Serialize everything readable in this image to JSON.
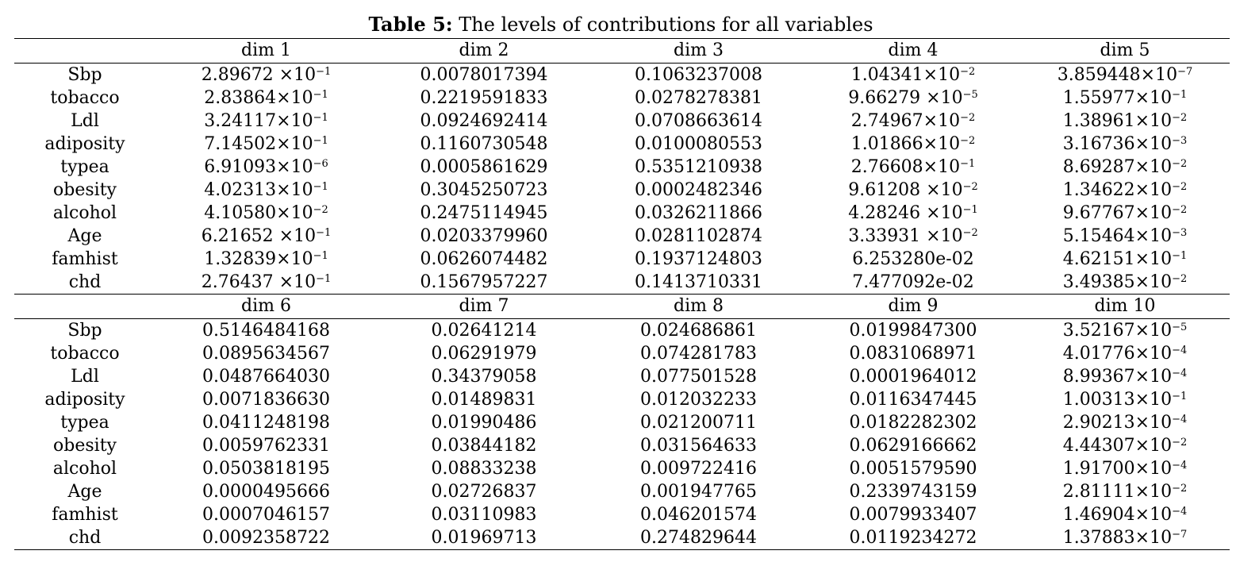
{
  "caption": {
    "label": "Table 5:",
    "text": " The levels of contributions for all variables"
  },
  "panels": [
    {
      "header": [
        "dim 1",
        "dim 2",
        "dim 3",
        "dim 4",
        "dim 5"
      ],
      "rows": [
        {
          "name": "Sbp",
          "values": [
            "2.89672 ×10^-1",
            "0.0078017394",
            "0.1063237008",
            "1.04341×10^-2",
            "3.859448×10^-7"
          ]
        },
        {
          "name": "tobacco",
          "values": [
            "2.83864×10^-1",
            "0.2219591833",
            "0.0278278381",
            "9.66279 ×10^-5",
            "1.55977×10^-1"
          ]
        },
        {
          "name": "Ldl",
          "values": [
            "3.24117×10^-1",
            "0.0924692414",
            "0.0708663614",
            "2.74967×10^-2",
            "1.38961×10^-2"
          ]
        },
        {
          "name": "adiposity",
          "values": [
            "7.14502×10^-1",
            "0.1160730548",
            "0.0100080553",
            "1.01866×10^-2",
            "3.16736×10^-3"
          ]
        },
        {
          "name": "typea",
          "values": [
            "6.91093×10^-6",
            "0.0005861629",
            "0.5351210938",
            "2.76608×10^-1",
            "8.69287×10^-2"
          ]
        },
        {
          "name": "obesity",
          "values": [
            "4.02313×10^-1",
            "0.3045250723",
            "0.0002482346",
            "9.61208 ×10^-2",
            "1.34622×10^-2"
          ]
        },
        {
          "name": "alcohol",
          "values": [
            "4.10580×10^-2",
            "0.2475114945",
            "0.0326211866",
            "4.28246 ×10^-1",
            "9.67767×10^-2"
          ]
        },
        {
          "name": "Age",
          "values": [
            "6.21652 ×10^-1",
            "0.0203379960",
            "0.0281102874",
            "3.33931 ×10^-2",
            "5.15464×10^-3"
          ]
        },
        {
          "name": "famhist",
          "values": [
            "1.32839×10^-1",
            "0.0626074482",
            "0.1937124803",
            "6.253280e-02",
            "4.62151×10^-1"
          ]
        },
        {
          "name": "chd",
          "values": [
            "2.76437 ×10^-1",
            "0.1567957227",
            "0.1413710331",
            "7.477092e-02",
            "3.49385×10^-2"
          ]
        }
      ]
    },
    {
      "header": [
        "dim 6",
        "dim 7",
        "dim 8",
        "dim 9",
        "dim 10"
      ],
      "rows": [
        {
          "name": "Sbp",
          "values": [
            "0.5146484168",
            "0.02641214",
            "0.024686861",
            "0.0199847300",
            "3.52167×10^-5"
          ]
        },
        {
          "name": "tobacco",
          "values": [
            "0.0895634567",
            "0.06291979",
            "0.074281783",
            "0.0831068971",
            "4.01776×10^-4"
          ]
        },
        {
          "name": "Ldl",
          "values": [
            "0.0487664030",
            "0.34379058",
            "0.077501528",
            "0.0001964012",
            "8.99367×10^-4"
          ]
        },
        {
          "name": "adiposity",
          "values": [
            "0.0071836630",
            "0.01489831",
            "0.012032233",
            "0.0116347445",
            "1.00313×10^-1"
          ]
        },
        {
          "name": "typea",
          "values": [
            "0.0411248198",
            "0.01990486",
            "0.021200711",
            "0.0182282302",
            "2.90213×10^-4"
          ]
        },
        {
          "name": "obesity",
          "values": [
            "0.0059762331",
            "0.03844182",
            "0.031564633",
            "0.0629166662",
            "4.44307×10^-2"
          ]
        },
        {
          "name": "alcohol",
          "values": [
            "0.0503818195",
            "0.08833238",
            "0.009722416",
            "0.0051579590",
            "1.91700×10^-4"
          ]
        },
        {
          "name": "Age",
          "values": [
            "0.0000495666",
            "0.02726837",
            "0.001947765",
            "0.2339743159",
            "2.81111×10^-2"
          ]
        },
        {
          "name": "famhist",
          "values": [
            "0.0007046157",
            "0.03110983",
            "0.046201574",
            "0.0079933407",
            "1.46904×10^-4"
          ]
        },
        {
          "name": "chd",
          "values": [
            "0.0092358722",
            "0.01969713",
            "0.274829644",
            "0.0119234272",
            "1.37883×10^-7"
          ]
        }
      ]
    }
  ]
}
